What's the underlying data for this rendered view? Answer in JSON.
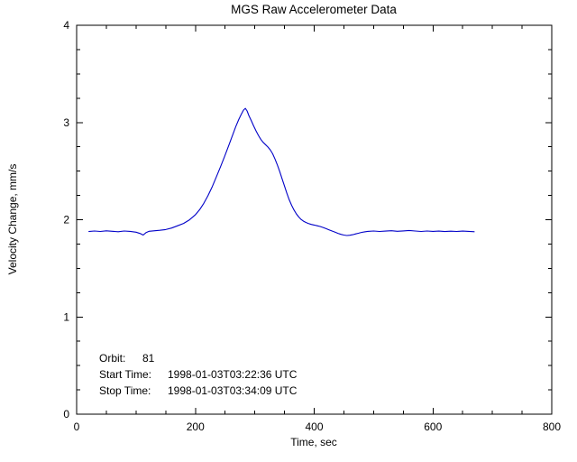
{
  "figure": {
    "title": "MGS Raw Accelerometer Data",
    "xlabel": "Time, sec",
    "ylabel": "Velocity Change, mm/s"
  },
  "annotations": {
    "orbit_label": "Orbit:",
    "orbit_value": "81",
    "start_label": "Start Time:",
    "start_value": "1998-01-03T03:22:36 UTC",
    "stop_label": "Stop Time:",
    "stop_value": "1998-01-03T03:34:09 UTC"
  },
  "colors": {
    "line": "#0000c8",
    "axis": "#000000",
    "background": "#ffffff"
  },
  "chart_data": {
    "type": "line",
    "title": "MGS Raw Accelerometer Data",
    "xlabel": "Time, sec",
    "ylabel": "Velocity Change, mm/s",
    "xlim": [
      0,
      800
    ],
    "ylim": [
      0,
      4
    ],
    "xticks": [
      0,
      200,
      400,
      600,
      800
    ],
    "yticks": [
      0,
      1,
      2,
      3,
      4
    ],
    "x_minor_step": 50,
    "y_minor_step": 0.25,
    "grid": false,
    "legend": null,
    "series": [
      {
        "name": "velocity-change",
        "color": "#0000c8",
        "points": [
          [
            20,
            1.878
          ],
          [
            30,
            1.884
          ],
          [
            40,
            1.879
          ],
          [
            50,
            1.886
          ],
          [
            60,
            1.881
          ],
          [
            70,
            1.877
          ],
          [
            80,
            1.884
          ],
          [
            90,
            1.88
          ],
          [
            100,
            1.872
          ],
          [
            107,
            1.858
          ],
          [
            112,
            1.842
          ],
          [
            117,
            1.868
          ],
          [
            122,
            1.881
          ],
          [
            130,
            1.886
          ],
          [
            140,
            1.891
          ],
          [
            150,
            1.899
          ],
          [
            160,
            1.915
          ],
          [
            170,
            1.938
          ],
          [
            180,
            1.962
          ],
          [
            190,
            1.999
          ],
          [
            200,
            2.052
          ],
          [
            207,
            2.103
          ],
          [
            214,
            2.168
          ],
          [
            221,
            2.246
          ],
          [
            228,
            2.335
          ],
          [
            235,
            2.437
          ],
          [
            242,
            2.54
          ],
          [
            249,
            2.648
          ],
          [
            256,
            2.76
          ],
          [
            263,
            2.878
          ],
          [
            268,
            2.958
          ],
          [
            273,
            3.03
          ],
          [
            277,
            3.082
          ],
          [
            281,
            3.128
          ],
          [
            284,
            3.145
          ],
          [
            287,
            3.118
          ],
          [
            290,
            3.072
          ],
          [
            294,
            3.02
          ],
          [
            298,
            2.965
          ],
          [
            302,
            2.915
          ],
          [
            306,
            2.868
          ],
          [
            310,
            2.828
          ],
          [
            314,
            2.796
          ],
          [
            318,
            2.772
          ],
          [
            322,
            2.748
          ],
          [
            326,
            2.718
          ],
          [
            330,
            2.678
          ],
          [
            334,
            2.625
          ],
          [
            338,
            2.562
          ],
          [
            342,
            2.495
          ],
          [
            346,
            2.42
          ],
          [
            350,
            2.345
          ],
          [
            354,
            2.272
          ],
          [
            358,
            2.205
          ],
          [
            362,
            2.148
          ],
          [
            366,
            2.1
          ],
          [
            370,
            2.06
          ],
          [
            374,
            2.028
          ],
          [
            378,
            2.003
          ],
          [
            382,
            1.985
          ],
          [
            386,
            1.972
          ],
          [
            390,
            1.962
          ],
          [
            395,
            1.952
          ],
          [
            400,
            1.945
          ],
          [
            405,
            1.938
          ],
          [
            410,
            1.93
          ],
          [
            415,
            1.92
          ],
          [
            420,
            1.908
          ],
          [
            425,
            1.896
          ],
          [
            430,
            1.884
          ],
          [
            435,
            1.872
          ],
          [
            440,
            1.86
          ],
          [
            445,
            1.85
          ],
          [
            450,
            1.842
          ],
          [
            455,
            1.838
          ],
          [
            460,
            1.84
          ],
          [
            465,
            1.846
          ],
          [
            470,
            1.854
          ],
          [
            475,
            1.862
          ],
          [
            480,
            1.87
          ],
          [
            485,
            1.876
          ],
          [
            490,
            1.88
          ],
          [
            500,
            1.884
          ],
          [
            510,
            1.879
          ],
          [
            520,
            1.883
          ],
          [
            530,
            1.887
          ],
          [
            540,
            1.881
          ],
          [
            550,
            1.885
          ],
          [
            560,
            1.89
          ],
          [
            570,
            1.884
          ],
          [
            580,
            1.879
          ],
          [
            590,
            1.884
          ],
          [
            600,
            1.88
          ],
          [
            610,
            1.883
          ],
          [
            620,
            1.878
          ],
          [
            630,
            1.882
          ],
          [
            640,
            1.879
          ],
          [
            650,
            1.883
          ],
          [
            660,
            1.88
          ],
          [
            670,
            1.877
          ]
        ]
      }
    ]
  }
}
